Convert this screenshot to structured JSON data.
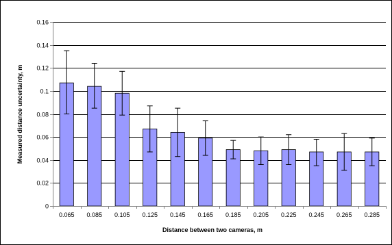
{
  "chart_data": {
    "type": "bar",
    "title": "",
    "xlabel": "Distance between two cameras, m",
    "ylabel": "Measured distance uncertainty, m",
    "categories": [
      "0.065",
      "0.085",
      "0.105",
      "0.125",
      "0.145",
      "0.165",
      "0.185",
      "0.205",
      "0.225",
      "0.245",
      "0.265",
      "0.285"
    ],
    "values": [
      0.107,
      0.104,
      0.098,
      0.067,
      0.064,
      0.059,
      0.049,
      0.048,
      0.049,
      0.047,
      0.047,
      0.047
    ],
    "error_low": [
      0.08,
      0.085,
      0.079,
      0.047,
      0.043,
      0.044,
      0.041,
      0.036,
      0.036,
      0.035,
      0.031,
      0.035
    ],
    "error_high": [
      0.135,
      0.124,
      0.117,
      0.087,
      0.085,
      0.074,
      0.057,
      0.06,
      0.062,
      0.058,
      0.063,
      0.059
    ],
    "ylim": [
      0,
      0.16
    ],
    "yticks": [
      "0",
      "0.02",
      "0.04",
      "0.06",
      "0.08",
      "0.1",
      "0.12",
      "0.14",
      "0.16"
    ],
    "ytick_values": [
      0,
      0.02,
      0.04,
      0.06,
      0.08,
      0.1,
      0.12,
      0.14,
      0.16
    ],
    "grid": true,
    "legend": "none",
    "colors": {
      "bar_fill": "#9999ff",
      "bar_stroke": "#000000",
      "grid": "#000000",
      "axis": "#808080",
      "error_bar": "#000000"
    }
  }
}
